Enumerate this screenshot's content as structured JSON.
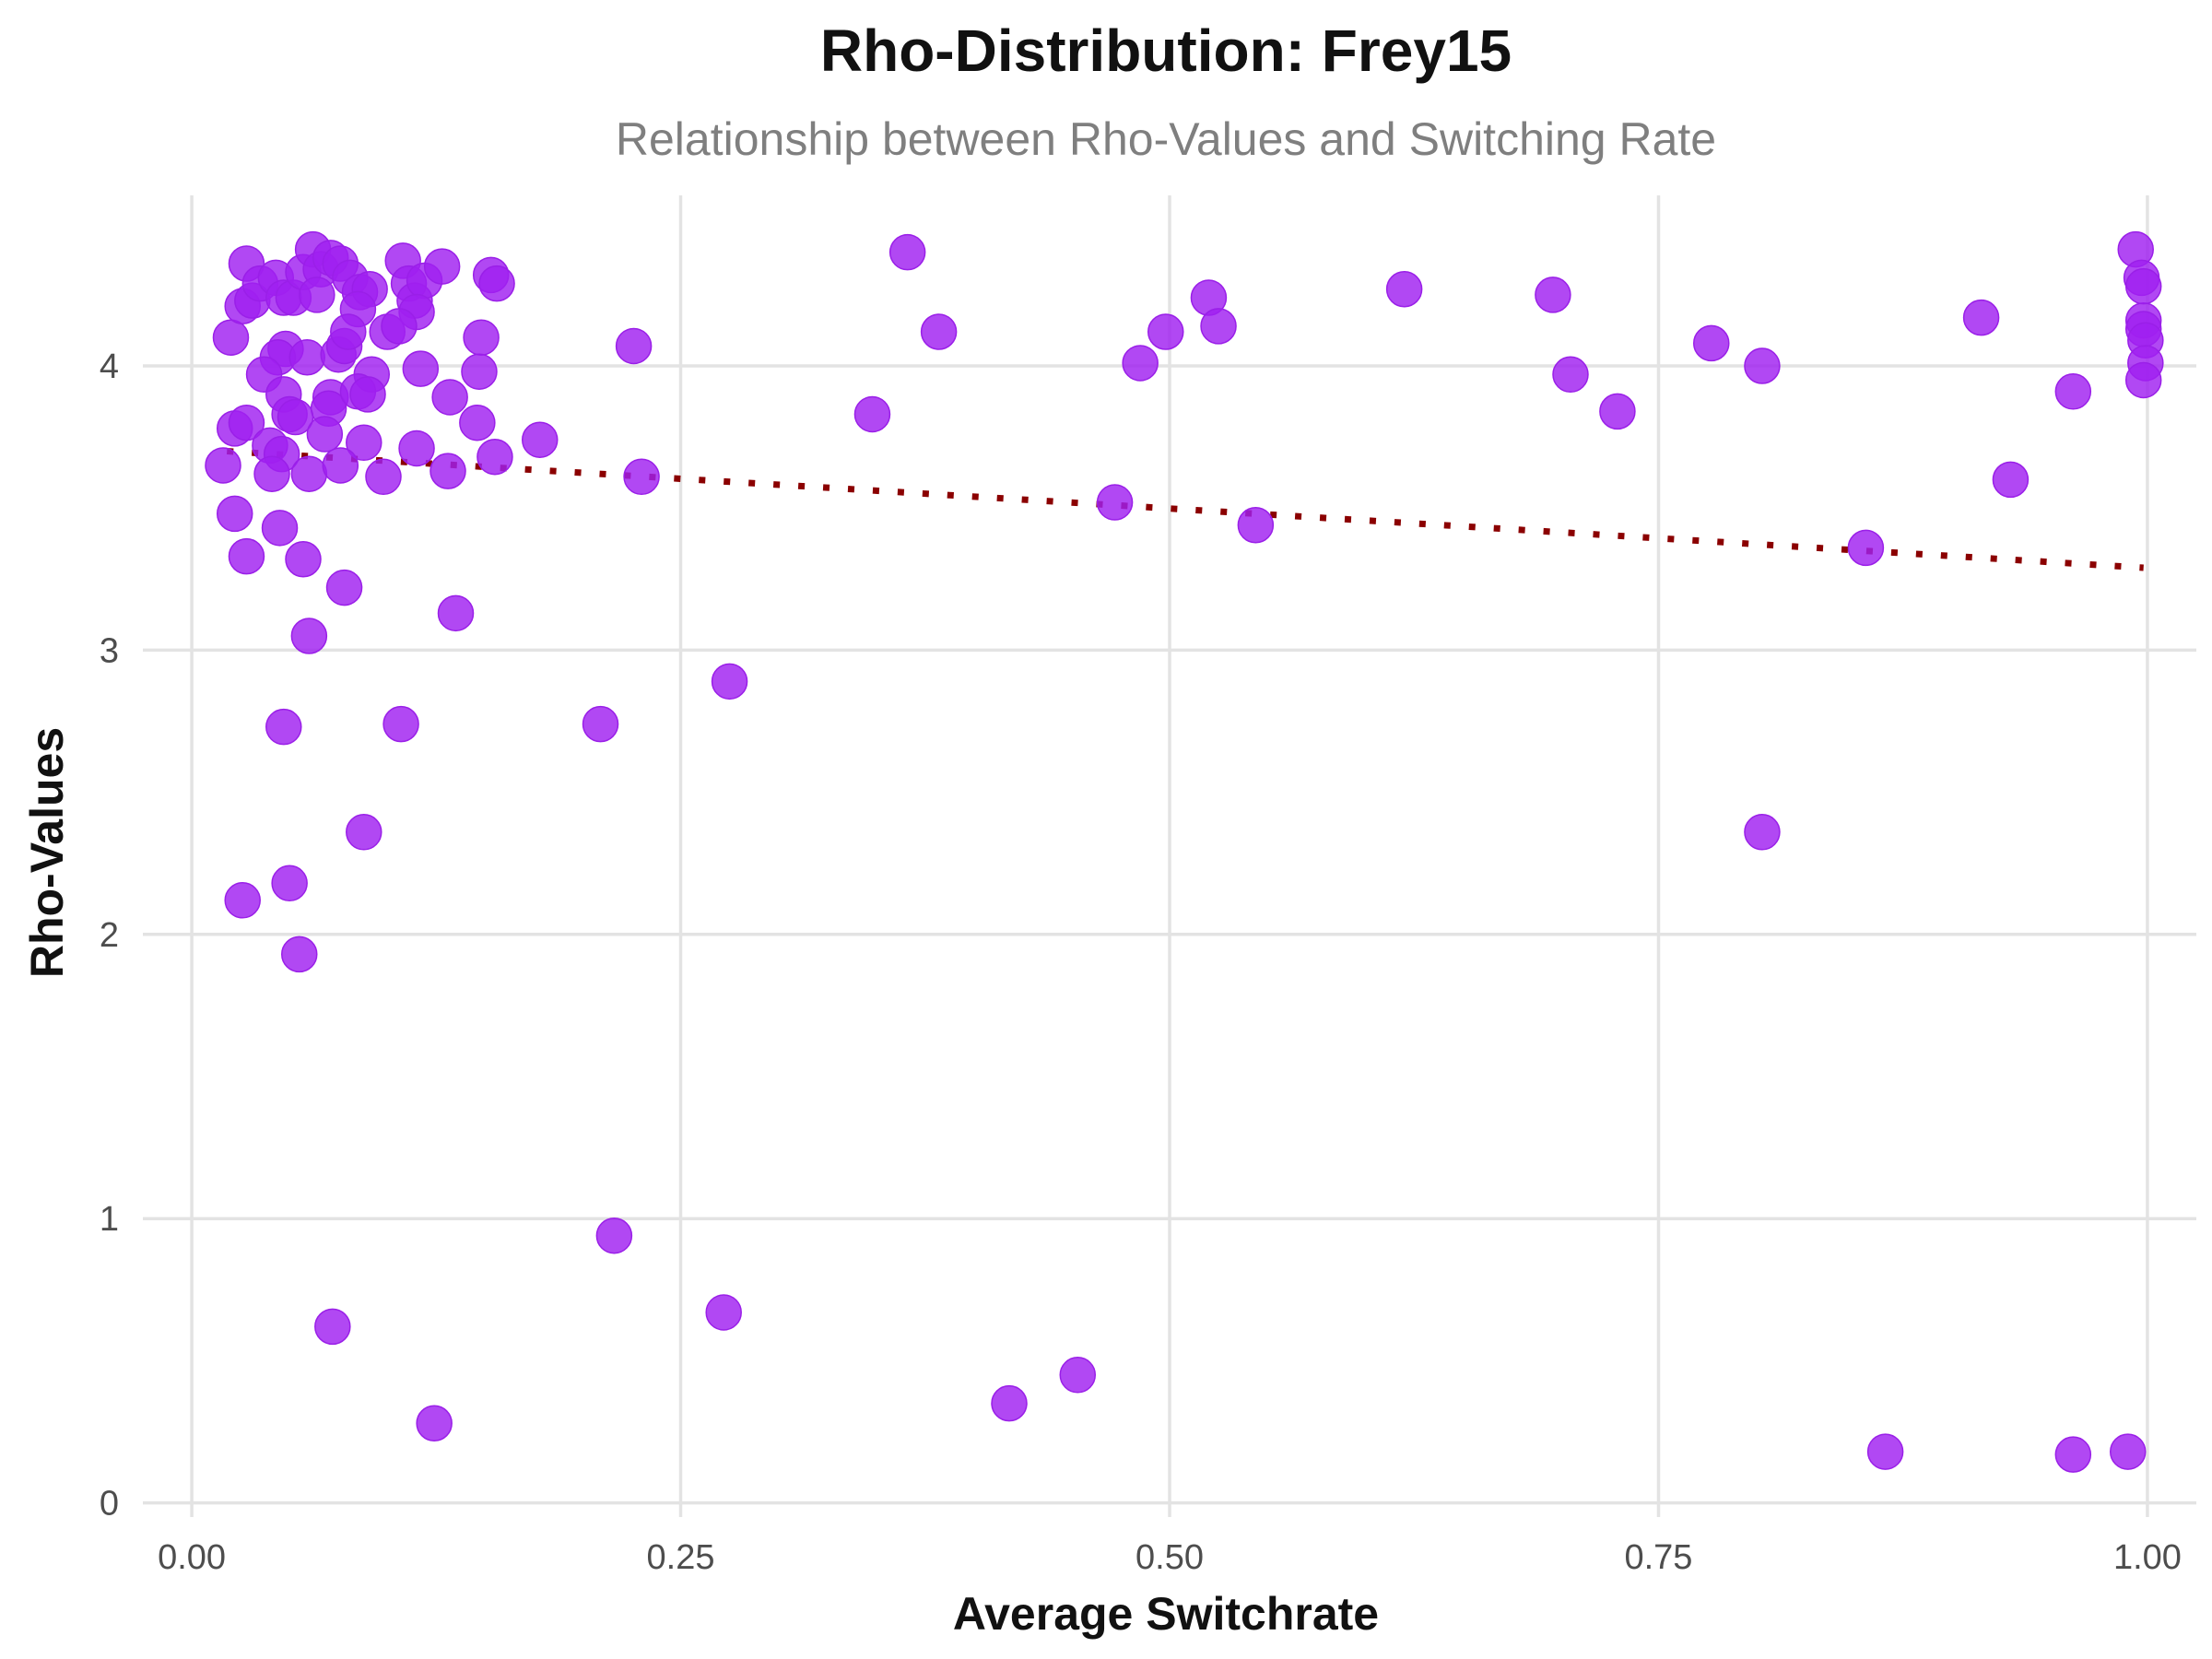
{
  "chart_data": {
    "type": "scatter",
    "title": "Rho-Distribution: Frey15",
    "subtitle": "Relationship between Rho-Values and Switching Rate",
    "xlabel": "Average Switchrate",
    "ylabel": "Rho-Values",
    "xlim": [
      -0.025,
      1.025
    ],
    "ylim": [
      -0.05,
      4.6
    ],
    "x_ticks": [
      0.0,
      0.25,
      0.5,
      0.75,
      1.0
    ],
    "x_tick_labels": [
      "0.00",
      "0.25",
      "0.50",
      "0.75",
      "1.00"
    ],
    "y_ticks": [
      0,
      1,
      2,
      3,
      4
    ],
    "y_tick_labels": [
      "0",
      "1",
      "2",
      "3",
      "4"
    ],
    "grid": true,
    "legend": "none",
    "colors": {
      "points": "#a020f0",
      "trend": "#8b0000",
      "grid": "#e3e3e3"
    },
    "trend_line": {
      "style": "dotted",
      "x": [
        0.018,
        0.998
      ],
      "y": [
        3.7,
        3.29
      ]
    },
    "series": [
      {
        "points": [
          [
            0.02,
            4.1
          ],
          [
            0.022,
            3.78
          ],
          [
            0.026,
            4.21
          ],
          [
            0.028,
            4.36
          ],
          [
            0.031,
            4.23
          ],
          [
            0.035,
            4.29
          ],
          [
            0.043,
            4.31
          ],
          [
            0.047,
            4.24
          ],
          [
            0.052,
            4.24
          ],
          [
            0.057,
            4.33
          ],
          [
            0.062,
            4.41
          ],
          [
            0.066,
            4.34
          ],
          [
            0.071,
            4.38
          ],
          [
            0.076,
            4.36
          ],
          [
            0.081,
            4.31
          ],
          [
            0.086,
            4.26
          ],
          [
            0.091,
            4.27
          ],
          [
            0.108,
            4.37
          ],
          [
            0.111,
            4.29
          ],
          [
            0.114,
            4.23
          ],
          [
            0.119,
            4.3
          ],
          [
            0.128,
            4.35
          ],
          [
            0.153,
            4.32
          ],
          [
            0.156,
            4.29
          ],
          [
            0.064,
            4.25
          ],
          [
            0.085,
            4.2
          ],
          [
            0.1,
            4.12
          ],
          [
            0.115,
            4.19
          ],
          [
            0.106,
            4.14
          ],
          [
            0.148,
            4.1
          ],
          [
            0.048,
            4.06
          ],
          [
            0.044,
            4.03
          ],
          [
            0.037,
            3.97
          ],
          [
            0.059,
            4.03
          ],
          [
            0.075,
            4.04
          ],
          [
            0.078,
            4.07
          ],
          [
            0.08,
            4.12
          ],
          [
            0.092,
            3.97
          ],
          [
            0.117,
            3.99
          ],
          [
            0.147,
            3.98
          ],
          [
            0.047,
            3.9
          ],
          [
            0.071,
            3.89
          ],
          [
            0.07,
            3.85
          ],
          [
            0.085,
            3.91
          ],
          [
            0.09,
            3.9
          ],
          [
            0.132,
            3.89
          ],
          [
            0.028,
            3.8
          ],
          [
            0.05,
            3.83
          ],
          [
            0.053,
            3.82
          ],
          [
            0.068,
            3.76
          ],
          [
            0.088,
            3.73
          ],
          [
            0.115,
            3.71
          ],
          [
            0.146,
            3.8
          ],
          [
            0.04,
            3.72
          ],
          [
            0.046,
            3.69
          ],
          [
            0.016,
            3.65
          ],
          [
            0.041,
            3.62
          ],
          [
            0.06,
            3.62
          ],
          [
            0.076,
            3.65
          ],
          [
            0.098,
            3.61
          ],
          [
            0.131,
            3.63
          ],
          [
            0.155,
            3.68
          ],
          [
            0.178,
            3.74
          ],
          [
            0.022,
            3.48
          ],
          [
            0.045,
            3.43
          ],
          [
            0.028,
            3.33
          ],
          [
            0.057,
            3.32
          ],
          [
            0.078,
            3.22
          ],
          [
            0.135,
            3.13
          ],
          [
            0.06,
            3.05
          ],
          [
            0.047,
            2.73
          ],
          [
            0.107,
            2.74
          ],
          [
            0.088,
            2.36
          ],
          [
            0.05,
            2.18
          ],
          [
            0.026,
            2.12
          ],
          [
            0.055,
            1.93
          ],
          [
            0.226,
            4.07
          ],
          [
            0.23,
            3.61
          ],
          [
            0.275,
            2.89
          ],
          [
            0.209,
            2.74
          ],
          [
            0.216,
            0.94
          ],
          [
            0.272,
            0.67
          ],
          [
            0.072,
            0.62
          ],
          [
            0.124,
            0.28
          ],
          [
            0.348,
            3.83
          ],
          [
            0.366,
            4.4
          ],
          [
            0.382,
            4.12
          ],
          [
            0.418,
            0.35
          ],
          [
            0.453,
            0.45
          ],
          [
            0.472,
            3.52
          ],
          [
            0.485,
            4.01
          ],
          [
            0.498,
            4.12
          ],
          [
            0.52,
            4.24
          ],
          [
            0.525,
            4.14
          ],
          [
            0.544,
            3.44
          ],
          [
            0.62,
            4.27
          ],
          [
            0.696,
            4.25
          ],
          [
            0.705,
            3.97
          ],
          [
            0.729,
            3.84
          ],
          [
            0.777,
            4.08
          ],
          [
            0.803,
            4.0
          ],
          [
            0.803,
            2.36
          ],
          [
            0.856,
            3.36
          ],
          [
            0.866,
            0.18
          ],
          [
            0.915,
            4.17
          ],
          [
            0.93,
            3.6
          ],
          [
            0.962,
            3.91
          ],
          [
            0.962,
            0.17
          ],
          [
            0.99,
            0.18
          ],
          [
            0.994,
            4.41
          ],
          [
            0.997,
            4.31
          ],
          [
            0.998,
            4.16
          ],
          [
            0.998,
            4.13
          ],
          [
            0.999,
            4.09
          ],
          [
            0.999,
            4.01
          ],
          [
            0.998,
            3.95
          ],
          [
            0.998,
            4.28
          ]
        ]
      }
    ]
  }
}
